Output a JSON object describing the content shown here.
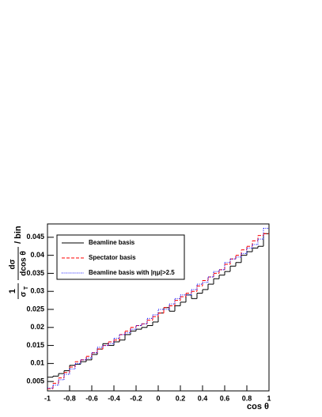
{
  "chart_data": {
    "type": "histogram",
    "xlabel": "cos θ",
    "ylabel_parts": [
      "1",
      "σ",
      "T",
      "dσ",
      "dcos θ",
      "/ bin"
    ],
    "bins": [
      -1,
      -0.95,
      -0.9,
      -0.85,
      -0.8,
      -0.75,
      -0.7,
      -0.65,
      -0.6,
      -0.55,
      -0.5,
      -0.45,
      -0.4,
      -0.35,
      -0.3,
      -0.25,
      -0.2,
      -0.15,
      -0.1,
      -0.05,
      0,
      0.05,
      0.1,
      0.15,
      0.2,
      0.25,
      0.3,
      0.35,
      0.4,
      0.45,
      0.5,
      0.55,
      0.6,
      0.65,
      0.7,
      0.75,
      0.8,
      0.85,
      0.9,
      0.95,
      1
    ],
    "series": [
      {
        "name": "Beamline basis",
        "color": "#000000",
        "line_style": "solid",
        "values": [
          0.0062,
          0.0065,
          0.0072,
          0.008,
          0.0095,
          0.0098,
          0.0105,
          0.011,
          0.0125,
          0.014,
          0.0155,
          0.015,
          0.016,
          0.0165,
          0.018,
          0.019,
          0.0195,
          0.02,
          0.0205,
          0.0215,
          0.024,
          0.0255,
          0.0245,
          0.026,
          0.027,
          0.029,
          0.028,
          0.0295,
          0.0305,
          0.032,
          0.0335,
          0.0345,
          0.0355,
          0.037,
          0.038,
          0.04,
          0.041,
          0.042,
          0.0425,
          0.046
        ]
      },
      {
        "name": "Spectator basis",
        "color": "#ff0000",
        "line_style": "dashed",
        "values": [
          0.003,
          0.0045,
          0.006,
          0.0075,
          0.009,
          0.0105,
          0.011,
          0.012,
          0.013,
          0.014,
          0.015,
          0.016,
          0.0165,
          0.018,
          0.019,
          0.02,
          0.0205,
          0.021,
          0.022,
          0.023,
          0.024,
          0.0255,
          0.026,
          0.0275,
          0.0285,
          0.0295,
          0.03,
          0.0315,
          0.033,
          0.034,
          0.035,
          0.036,
          0.0375,
          0.039,
          0.04,
          0.0415,
          0.0425,
          0.044,
          0.0455,
          0.046
        ]
      },
      {
        "name": "Beamline basis with |ημ|>2.5",
        "color": "#0000ff",
        "line_style": "dotted",
        "values": [
          0.0032,
          0.004,
          0.0055,
          0.007,
          0.0085,
          0.01,
          0.011,
          0.0115,
          0.013,
          0.0145,
          0.015,
          0.0155,
          0.017,
          0.018,
          0.0185,
          0.0195,
          0.0205,
          0.021,
          0.0225,
          0.0235,
          0.025,
          0.025,
          0.0265,
          0.028,
          0.029,
          0.029,
          0.0305,
          0.032,
          0.0325,
          0.034,
          0.0355,
          0.036,
          0.038,
          0.039,
          0.0395,
          0.0405,
          0.042,
          0.043,
          0.0445,
          0.0475
        ]
      }
    ],
    "xlim": [
      -1,
      1
    ],
    "xticks": [
      -1,
      -0.8,
      -0.6,
      -0.4,
      -0.2,
      0,
      0.2,
      0.4,
      0.6,
      0.8,
      1
    ],
    "ylim": [
      0.0024,
      0.0487
    ],
    "yticks": [
      0.005,
      0.01,
      0.015,
      0.02,
      0.025,
      0.03,
      0.035,
      0.04,
      0.045
    ],
    "legend": "upper left"
  }
}
